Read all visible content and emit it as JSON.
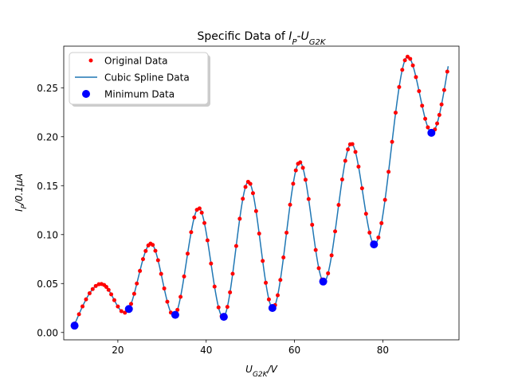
{
  "chart_data": {
    "type": "line",
    "title": {
      "prefix": "Specific Data of ",
      "main": "I",
      "sub": "P",
      "sep": "-",
      "main2": "U",
      "sub2": "G2K"
    },
    "xlabel": {
      "main": "U",
      "sub": "G2K",
      "suffix": "/V"
    },
    "ylabel": {
      "main": "I",
      "sub": "P",
      "suffix": "/0.1",
      "unit_symbol": "μA"
    },
    "xlim": [
      7.75,
      97.25
    ],
    "ylim": [
      -0.0075,
      0.2925
    ],
    "x_ticks": [
      20,
      40,
      60,
      80
    ],
    "y_ticks": [
      0.0,
      0.05,
      0.1,
      0.15,
      0.2,
      0.25
    ],
    "x_tick_labels": [
      "20",
      "40",
      "60",
      "80"
    ],
    "y_tick_labels": [
      "0.00",
      "0.05",
      "0.10",
      "0.15",
      "0.20",
      "0.25"
    ],
    "grid": false,
    "legend_position": "upper-left",
    "series": [
      {
        "name": "Original Data",
        "style": "points",
        "color": "#ff0000",
        "x": [
          10.3,
          11.2,
          12.0,
          12.8,
          13.6,
          14.3,
          15.0,
          15.7,
          16.3,
          16.9,
          17.4,
          17.9,
          18.5,
          19.2,
          20.0,
          20.8,
          21.6,
          22.3,
          23.0,
          23.7,
          24.3,
          25.0,
          25.7,
          26.3,
          26.9,
          27.4,
          27.9,
          28.5,
          29.1,
          29.8,
          30.5,
          31.2,
          32.0,
          32.8,
          33.5,
          34.2,
          35.0,
          35.8,
          36.6,
          37.3,
          37.9,
          38.5,
          39.0,
          39.6,
          40.3,
          41.1,
          41.9,
          42.8,
          43.5,
          44.2,
          44.8,
          45.4,
          46.0,
          46.8,
          47.6,
          48.3,
          48.9,
          49.5,
          50.0,
          50.6,
          51.3,
          52.0,
          52.8,
          53.5,
          54.2,
          54.9,
          55.6,
          56.2,
          56.8,
          57.5,
          58.2,
          59.0,
          59.7,
          60.3,
          60.8,
          61.3,
          61.9,
          62.5,
          63.2,
          64.0,
          64.8,
          65.5,
          66.2,
          66.9,
          67.6,
          68.4,
          69.2,
          70.0,
          70.8,
          71.5,
          72.1,
          72.6,
          73.1,
          73.8,
          74.5,
          75.3,
          76.2,
          77.0,
          77.7,
          78.3,
          79.0,
          79.7,
          80.5,
          81.3,
          82.1,
          82.9,
          83.7,
          84.4,
          85.0,
          85.6,
          86.2,
          86.8,
          87.5,
          88.2,
          88.9,
          89.6,
          90.2,
          90.8,
          91.3,
          91.8,
          92.3,
          92.8,
          93.3,
          93.9,
          94.6
        ]
      },
      {
        "name": "Cubic Spline Data",
        "style": "line",
        "color": "#1f77b4"
      },
      {
        "name": "Minimum Data",
        "style": "points",
        "color": "#0000ff",
        "x": [
          10.2,
          22.5,
          33.0,
          44.0,
          55.0,
          66.5,
          78.0,
          91.0
        ],
        "y": [
          0.007,
          0.024,
          0.018,
          0.016,
          0.025,
          0.052,
          0.09,
          0.204
        ]
      }
    ],
    "spline_knots": {
      "x": [
        10.0,
        17.5,
        22.5,
        27.8,
        33.0,
        38.4,
        44.0,
        49.6,
        55.0,
        61.2,
        66.5,
        72.9,
        78.0,
        85.2,
        91.0,
        94.8
      ],
      "y": [
        0.006,
        0.046,
        0.024,
        0.09,
        0.018,
        0.127,
        0.016,
        0.154,
        0.025,
        0.174,
        0.052,
        0.193,
        0.09,
        0.28,
        0.204,
        0.272
      ]
    }
  }
}
